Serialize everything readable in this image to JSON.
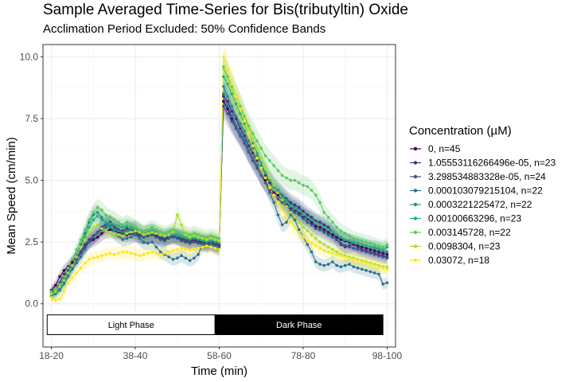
{
  "title": "Sample Averaged Time-Series for Bis(tributyltin) Oxide",
  "subtitle": "Acclimation Period Excluded: 50% Confidence Bands",
  "chart_data": {
    "type": "line",
    "title": "Sample Averaged Time-Series for Bis(tributyltin) Oxide",
    "subtitle": "Acclimation Period Excluded: 50% Confidence Bands",
    "xlabel": "Time (min)",
    "ylabel": "Mean Speed (cm/min)",
    "x_ticks": [
      "18-20",
      "38-40",
      "58-60",
      "78-80",
      "98-100"
    ],
    "x_tick_positions": [
      19,
      39,
      59,
      79,
      99
    ],
    "x_range": [
      17,
      101
    ],
    "y_ticks": [
      "0.0",
      "2.5",
      "5.0",
      "7.5",
      "10.0"
    ],
    "ylim": [
      -1.75,
      10.5
    ],
    "grid": true,
    "legend_title": "Concentration (µM)",
    "legend_position": "right",
    "phase_bar": {
      "y_range": [
        -1.25,
        -0.45
      ],
      "phases": [
        {
          "label": "Light Phase",
          "x_range": [
            18,
            58
          ],
          "fill": "#ffffff",
          "text_color": "#000000"
        },
        {
          "label": "Dark Phase",
          "x_range": [
            58,
            98
          ],
          "fill": "#000000",
          "text_color": "#ffffff"
        }
      ]
    },
    "x": [
      19,
      20,
      21,
      22,
      23,
      24,
      25,
      26,
      27,
      28,
      29,
      30,
      31,
      32,
      33,
      34,
      35,
      36,
      37,
      38,
      39,
      40,
      41,
      42,
      43,
      44,
      45,
      46,
      47,
      48,
      49,
      50,
      51,
      52,
      53,
      54,
      55,
      56,
      57,
      58,
      59,
      60,
      61,
      62,
      63,
      64,
      65,
      66,
      67,
      68,
      69,
      70,
      71,
      72,
      73,
      74,
      75,
      76,
      77,
      78,
      79,
      80,
      81,
      82,
      83,
      84,
      85,
      86,
      87,
      88,
      89,
      90,
      91,
      92,
      93,
      94,
      95,
      96,
      97,
      98,
      99
    ],
    "series": [
      {
        "name": "0, n=45",
        "color": "#440154",
        "values": [
          0.55,
          0.75,
          1.1,
          1.35,
          1.5,
          1.7,
          1.9,
          2.1,
          2.3,
          2.5,
          2.6,
          2.7,
          2.85,
          2.95,
          3.0,
          2.95,
          2.9,
          2.85,
          2.8,
          2.85,
          2.8,
          2.75,
          2.7,
          2.75,
          2.8,
          2.75,
          2.7,
          2.65,
          2.7,
          2.75,
          2.7,
          2.65,
          2.6,
          2.55,
          2.6,
          2.55,
          2.5,
          2.45,
          2.5,
          2.45,
          2.4,
          8.2,
          7.9,
          7.5,
          7.2,
          6.9,
          6.6,
          6.2,
          5.9,
          5.6,
          5.2,
          5.0,
          4.7,
          4.5,
          4.4,
          4.2,
          4.05,
          3.9,
          3.8,
          3.7,
          3.55,
          3.45,
          3.3,
          3.15,
          3.1,
          3.0,
          2.9,
          2.8,
          2.7,
          2.6,
          2.55,
          2.5,
          2.4,
          2.35,
          2.3,
          2.25,
          2.2,
          2.15,
          2.1,
          2.05,
          2.0
        ]
      },
      {
        "name": "1.05553116266496e-05, n=23",
        "color": "#472d7b",
        "values": [
          0.5,
          0.6,
          0.85,
          1.2,
          1.4,
          1.6,
          1.85,
          2.1,
          2.4,
          2.6,
          2.75,
          2.9,
          3.1,
          3.25,
          3.3,
          3.15,
          3.0,
          2.95,
          3.05,
          3.0,
          2.95,
          2.8,
          2.7,
          2.75,
          2.8,
          2.7,
          2.65,
          2.6,
          2.7,
          2.75,
          2.7,
          2.6,
          2.55,
          2.5,
          2.55,
          2.5,
          2.45,
          2.4,
          2.45,
          2.4,
          2.35,
          8.4,
          8.2,
          7.8,
          7.5,
          7.1,
          6.8,
          6.4,
          6.1,
          5.8,
          5.5,
          5.2,
          4.9,
          4.7,
          4.55,
          4.4,
          4.25,
          4.1,
          4.0,
          3.9,
          3.75,
          3.6,
          3.5,
          3.35,
          3.3,
          3.2,
          3.1,
          2.9,
          2.6,
          2.4,
          2.3,
          2.35,
          2.4,
          2.3,
          2.2,
          2.15,
          2.1,
          2.05,
          2.0,
          1.95,
          1.9
        ]
      },
      {
        "name": "3.298534883328e-05, n=24",
        "color": "#3b528b",
        "values": [
          0.45,
          0.55,
          0.75,
          1.05,
          1.35,
          1.55,
          1.8,
          2.05,
          2.3,
          2.55,
          2.7,
          2.9,
          3.05,
          3.2,
          3.25,
          3.1,
          2.95,
          2.9,
          3.0,
          2.95,
          2.9,
          2.75,
          2.7,
          2.75,
          2.8,
          2.7,
          2.6,
          2.55,
          2.65,
          2.7,
          2.65,
          2.55,
          2.5,
          2.45,
          2.5,
          2.45,
          2.4,
          2.35,
          2.4,
          2.35,
          2.3,
          8.0,
          7.7,
          7.4,
          7.1,
          6.8,
          6.5,
          6.15,
          5.8,
          5.5,
          5.2,
          4.9,
          4.6,
          4.4,
          4.25,
          4.1,
          3.95,
          3.8,
          3.7,
          3.6,
          3.45,
          3.3,
          3.2,
          3.05,
          3.0,
          2.9,
          2.8,
          2.7,
          2.6,
          2.45,
          2.35,
          2.3,
          2.25,
          2.2,
          2.15,
          2.1,
          2.05,
          2.0,
          1.95,
          1.9,
          1.85
        ]
      },
      {
        "name": "0.000103079215104, n=22",
        "color": "#2c728e",
        "values": [
          0.3,
          0.45,
          0.6,
          0.85,
          1.15,
          1.4,
          1.65,
          1.9,
          2.2,
          2.5,
          2.7,
          2.85,
          3.0,
          3.1,
          3.15,
          2.9,
          2.75,
          2.6,
          2.65,
          2.7,
          2.8,
          2.65,
          2.5,
          2.45,
          2.5,
          2.3,
          2.1,
          2.0,
          1.9,
          1.8,
          1.85,
          1.95,
          1.85,
          1.75,
          1.85,
          2.0,
          2.4,
          2.55,
          2.45,
          2.3,
          2.2,
          8.5,
          8.0,
          7.6,
          7.2,
          6.9,
          6.6,
          6.2,
          5.9,
          5.6,
          5.2,
          4.9,
          4.5,
          4.1,
          3.6,
          3.2,
          3.3,
          3.6,
          3.4,
          3.0,
          2.7,
          2.4,
          2.1,
          1.7,
          1.6,
          1.55,
          1.6,
          1.7,
          1.55,
          1.5,
          1.55,
          1.6,
          1.5,
          1.45,
          1.4,
          1.35,
          1.3,
          1.25,
          1.2,
          0.8,
          0.85
        ]
      },
      {
        "name": "0.0003221225472, n=22",
        "color": "#21918c",
        "values": [
          0.3,
          0.4,
          0.55,
          0.8,
          1.1,
          1.5,
          1.95,
          2.4,
          2.85,
          3.3,
          3.6,
          3.7,
          3.5,
          3.25,
          3.1,
          3.0,
          2.95,
          2.9,
          2.95,
          3.0,
          3.05,
          2.95,
          2.85,
          2.9,
          2.95,
          2.85,
          2.75,
          2.7,
          2.75,
          2.8,
          2.75,
          2.7,
          2.65,
          2.6,
          2.65,
          2.6,
          2.55,
          2.5,
          2.55,
          2.5,
          2.45,
          8.8,
          8.4,
          8.0,
          7.6,
          7.3,
          7.0,
          6.6,
          6.3,
          6.0,
          5.6,
          5.3,
          5.0,
          4.8,
          4.6,
          4.4,
          4.2,
          4.0,
          3.9,
          3.8,
          3.6,
          3.5,
          3.4,
          3.3,
          3.2,
          3.1,
          3.0,
          2.9,
          2.8,
          2.7,
          2.6,
          2.55,
          2.5,
          2.45,
          2.4,
          2.35,
          2.3,
          2.25,
          2.2,
          2.15,
          2.1
        ]
      },
      {
        "name": "0.00100663296, n=23",
        "color": "#27ad81",
        "values": [
          0.4,
          0.5,
          0.7,
          0.95,
          1.25,
          1.55,
          1.9,
          2.3,
          2.7,
          3.1,
          3.4,
          3.55,
          3.4,
          3.3,
          3.25,
          3.2,
          3.15,
          3.1,
          3.15,
          3.1,
          3.05,
          2.95,
          2.85,
          2.9,
          2.95,
          2.9,
          2.8,
          2.75,
          2.8,
          2.85,
          2.8,
          2.75,
          2.7,
          2.65,
          2.7,
          2.65,
          2.6,
          2.55,
          2.6,
          2.55,
          2.5,
          9.2,
          8.9,
          8.5,
          8.1,
          7.7,
          7.3,
          6.9,
          6.5,
          6.1,
          5.7,
          5.3,
          5.0,
          4.7,
          4.5,
          4.3,
          4.1,
          3.95,
          3.85,
          3.75,
          3.6,
          3.5,
          3.4,
          3.3,
          3.2,
          3.1,
          3.0,
          2.9,
          2.8,
          2.7,
          2.6,
          2.55,
          2.5,
          2.45,
          2.4,
          2.35,
          2.3,
          2.3,
          2.25,
          2.2,
          2.3
        ]
      },
      {
        "name": "0.003145728, n=22",
        "color": "#5ec962",
        "values": [
          0.5,
          0.6,
          0.8,
          1.1,
          1.45,
          1.8,
          2.2,
          2.6,
          3.0,
          3.4,
          3.7,
          3.9,
          3.8,
          3.6,
          3.5,
          3.4,
          3.3,
          3.2,
          3.3,
          3.2,
          3.1,
          3.0,
          2.9,
          3.0,
          3.1,
          3.0,
          2.9,
          2.85,
          2.9,
          3.0,
          2.95,
          2.9,
          2.85,
          2.8,
          2.85,
          2.8,
          2.75,
          2.7,
          2.75,
          2.7,
          2.65,
          9.6,
          9.2,
          8.8,
          8.4,
          8.0,
          7.6,
          7.2,
          6.9,
          6.6,
          6.3,
          6.0,
          5.8,
          5.6,
          5.4,
          5.2,
          5.1,
          5.0,
          5.0,
          4.9,
          4.8,
          4.75,
          4.6,
          4.4,
          4.1,
          3.7,
          3.5,
          3.3,
          3.1,
          2.95,
          2.85,
          2.75,
          2.65,
          2.6,
          2.55,
          2.5,
          2.45,
          2.4,
          2.35,
          2.3,
          2.4
        ]
      },
      {
        "name": "0.0098304, n=23",
        "color": "#addc30",
        "values": [
          0.4,
          0.5,
          0.7,
          0.95,
          1.25,
          1.55,
          1.9,
          2.3,
          2.6,
          2.9,
          3.1,
          3.2,
          3.05,
          2.95,
          2.9,
          2.85,
          2.8,
          2.75,
          2.85,
          2.9,
          2.95,
          2.9,
          2.8,
          2.85,
          2.9,
          2.85,
          2.8,
          2.75,
          2.8,
          2.9,
          3.6,
          3.2,
          2.8,
          2.7,
          2.75,
          2.7,
          2.65,
          2.6,
          2.65,
          2.6,
          2.55,
          9.5,
          9.1,
          8.7,
          8.3,
          7.9,
          7.5,
          7.1,
          6.7,
          6.3,
          5.9,
          5.5,
          5.1,
          4.8,
          4.5,
          4.2,
          3.95,
          3.7,
          3.5,
          3.3,
          3.1,
          2.95,
          2.8,
          2.65,
          2.5,
          2.4,
          2.3,
          2.2,
          2.1,
          2.0,
          1.95,
          1.9,
          1.85,
          1.8,
          1.75,
          1.7,
          1.65,
          1.6,
          1.55,
          1.5,
          1.5
        ]
      },
      {
        "name": "0.03072, n=18",
        "color": "#fde725",
        "values": [
          0.25,
          0.15,
          0.2,
          0.5,
          0.85,
          1.05,
          1.25,
          1.45,
          1.65,
          1.8,
          1.85,
          1.9,
          1.95,
          2.0,
          2.05,
          2.0,
          2.05,
          2.1,
          2.1,
          2.05,
          2.0,
          1.95,
          2.0,
          2.05,
          2.1,
          2.05,
          2.0,
          2.05,
          2.1,
          2.15,
          2.2,
          2.25,
          2.2,
          2.15,
          2.2,
          2.25,
          2.3,
          2.35,
          2.3,
          2.25,
          2.2,
          10.0,
          9.5,
          8.9,
          8.4,
          7.9,
          7.4,
          6.9,
          6.4,
          5.9,
          5.5,
          5.1,
          4.7,
          4.4,
          4.1,
          3.8,
          3.5,
          3.3,
          3.1,
          2.9,
          2.7,
          2.55,
          2.45,
          2.35,
          2.25,
          2.15,
          2.1,
          2.05,
          2.0,
          1.95,
          1.9,
          1.85,
          1.8,
          1.75,
          1.7,
          1.65,
          1.6,
          1.55,
          1.5,
          1.45,
          1.4
        ]
      }
    ]
  }
}
